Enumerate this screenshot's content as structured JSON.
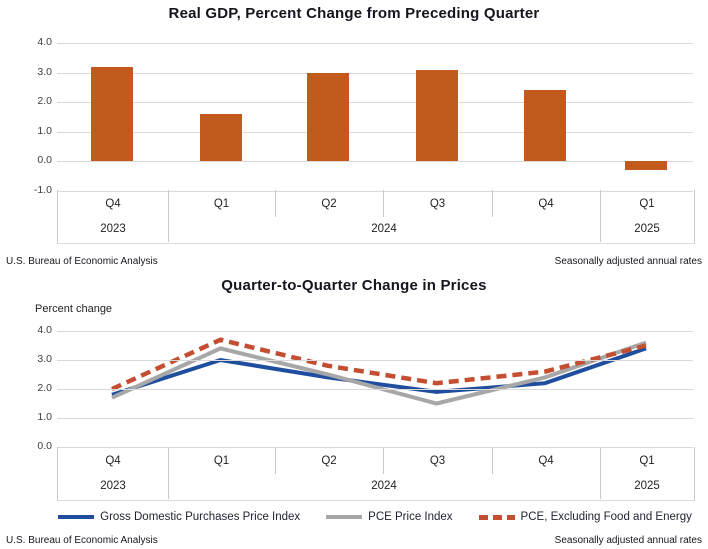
{
  "chart_data": [
    {
      "type": "bar",
      "title": "Real GDP, Percent Change from Preceding Quarter",
      "categories": [
        "Q4",
        "Q1",
        "Q2",
        "Q3",
        "Q4",
        "Q1"
      ],
      "year_groups": [
        {
          "label": "2023",
          "span": 1
        },
        {
          "label": "2024",
          "span": 4
        },
        {
          "label": "2025",
          "span": 1
        }
      ],
      "values": [
        3.2,
        1.6,
        3.0,
        3.1,
        2.4,
        -0.3
      ],
      "yticks": [
        "4.0",
        "3.0",
        "2.0",
        "1.0",
        "0.0",
        "-1.0"
      ],
      "ylim": [
        -1.0,
        4.0
      ],
      "bar_color": "#c35a1d",
      "footer_left": "U.S. Bureau of Economic Analysis",
      "footer_right": "Seasonally adjusted annual rates"
    },
    {
      "type": "line",
      "title": "Quarter-to-Quarter Change in Prices",
      "ylabel": "Percent change",
      "categories": [
        "Q4",
        "Q1",
        "Q2",
        "Q3",
        "Q4",
        "Q1"
      ],
      "year_groups": [
        {
          "label": "2023",
          "span": 1
        },
        {
          "label": "2024",
          "span": 4
        },
        {
          "label": "2025",
          "span": 1
        }
      ],
      "series": [
        {
          "name": "Gross Domestic Purchases Price Index",
          "color": "#1f4e9e",
          "style": "solid",
          "values": [
            1.8,
            3.0,
            2.4,
            1.9,
            2.2,
            3.4
          ]
        },
        {
          "name": "PCE Price Index",
          "color": "#a7a7a7",
          "style": "solid",
          "values": [
            1.7,
            3.4,
            2.5,
            1.5,
            2.4,
            3.6
          ]
        },
        {
          "name": "PCE, Excluding Food and Energy",
          "color": "#c44e32",
          "style": "dashed",
          "values": [
            2.0,
            3.7,
            2.8,
            2.2,
            2.6,
            3.5
          ]
        }
      ],
      "yticks": [
        "4.0",
        "3.0",
        "2.0",
        "1.0",
        "0.0"
      ],
      "ylim": [
        0.0,
        4.0
      ],
      "footer_left": "U.S. Bureau of Economic Analysis",
      "footer_right": "Seasonally adjusted annual rates"
    }
  ]
}
